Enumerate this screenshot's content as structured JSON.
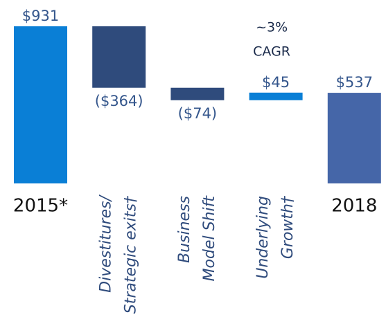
{
  "chart_data": {
    "type": "waterfall",
    "categories": [
      [
        "2015*"
      ],
      [
        "Divestitures/",
        "Strategic exits†"
      ],
      [
        "Business",
        "Model Shift"
      ],
      [
        "Underlying",
        "Growth†"
      ],
      [
        "2018"
      ]
    ],
    "values": [
      931,
      -364,
      -74,
      45,
      537
    ],
    "value_labels": [
      "$931",
      "($364)",
      "($74)",
      "$45",
      "$537"
    ],
    "colors": [
      "#0a7fd6",
      "#2f4b7c",
      "#2f4b7c",
      "#0a7fd6",
      "#4566a8"
    ],
    "annotation": [
      "~3%",
      "CAGR"
    ]
  }
}
